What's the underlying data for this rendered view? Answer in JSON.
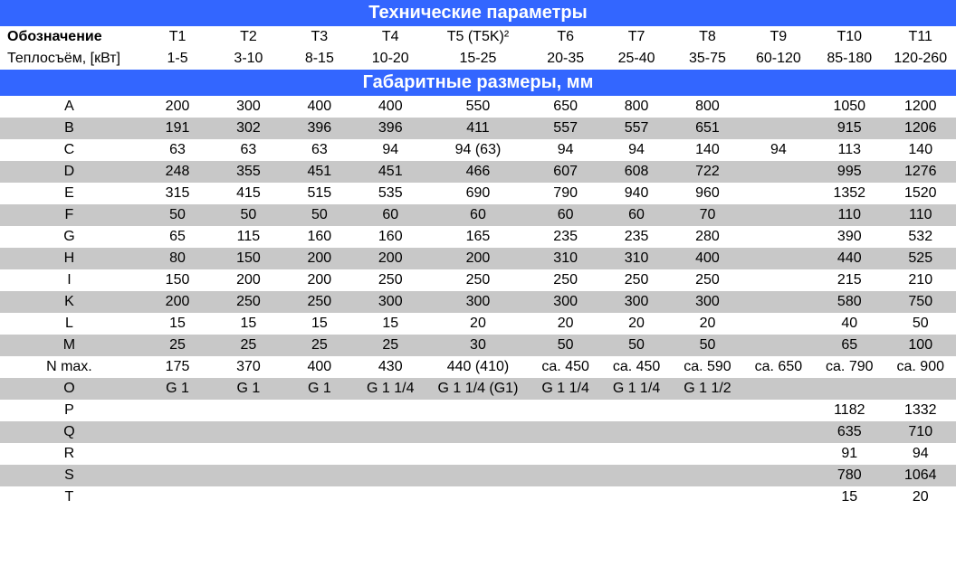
{
  "colors": {
    "header_bg": "#3366ff",
    "header_text": "#ffffff",
    "row_light": "#ffffff",
    "row_gray": "#c8c8c8",
    "text": "#000000"
  },
  "section1": {
    "title": "Технические параметры",
    "row1_label": "Обозначение",
    "row1_cols": [
      "T1",
      "T2",
      "T3",
      "T4",
      "T5 (T5K)²",
      "T6",
      "T7",
      "T8",
      "T9",
      "T10",
      "T11"
    ],
    "row2_label": "Теплосъём, [кВт]",
    "row2_cols": [
      "1-5",
      "3-10",
      "8-15",
      "10-20",
      "15-25",
      "20-35",
      "25-40",
      "35-75",
      "60-120",
      "85-180",
      "120-260"
    ]
  },
  "section2": {
    "title": "Габаритные размеры, мм",
    "rows": [
      {
        "label": "A",
        "gray": false,
        "vals": [
          "200",
          "300",
          "400",
          "400",
          "550",
          "650",
          "800",
          "800",
          "",
          "1050",
          "1200"
        ]
      },
      {
        "label": "B",
        "gray": true,
        "vals": [
          "191",
          "302",
          "396",
          "396",
          "411",
          "557",
          "557",
          "651",
          "",
          "915",
          "1206"
        ]
      },
      {
        "label": "C",
        "gray": false,
        "vals": [
          "63",
          "63",
          "63",
          "94",
          "94 (63)",
          "94",
          "94",
          "140",
          "94",
          "113",
          "140"
        ]
      },
      {
        "label": "D",
        "gray": true,
        "vals": [
          "248",
          "355",
          "451",
          "451",
          "466",
          "607",
          "608",
          "722",
          "",
          "995",
          "1276"
        ]
      },
      {
        "label": "E",
        "gray": false,
        "vals": [
          "315",
          "415",
          "515",
          "535",
          "690",
          "790",
          "940",
          "960",
          "",
          "1352",
          "1520"
        ]
      },
      {
        "label": "F",
        "gray": true,
        "vals": [
          "50",
          "50",
          "50",
          "60",
          "60",
          "60",
          "60",
          "70",
          "",
          "110",
          "110"
        ]
      },
      {
        "label": "G",
        "gray": false,
        "vals": [
          "65",
          "115",
          "160",
          "160",
          "165",
          "235",
          "235",
          "280",
          "",
          "390",
          "532"
        ]
      },
      {
        "label": "H",
        "gray": true,
        "vals": [
          "80",
          "150",
          "200",
          "200",
          "200",
          "310",
          "310",
          "400",
          "",
          "440",
          "525"
        ]
      },
      {
        "label": "I",
        "gray": false,
        "vals": [
          "150",
          "200",
          "200",
          "250",
          "250",
          "250",
          "250",
          "250",
          "",
          "215",
          "210"
        ]
      },
      {
        "label": "K",
        "gray": true,
        "vals": [
          "200",
          "250",
          "250",
          "300",
          "300",
          "300",
          "300",
          "300",
          "",
          "580",
          "750"
        ]
      },
      {
        "label": "L",
        "gray": false,
        "vals": [
          "15",
          "15",
          "15",
          "15",
          "20",
          "20",
          "20",
          "20",
          "",
          "40",
          "50"
        ]
      },
      {
        "label": "M",
        "gray": true,
        "vals": [
          "25",
          "25",
          "25",
          "25",
          "30",
          "50",
          "50",
          "50",
          "",
          "65",
          "100"
        ]
      },
      {
        "label": "N max.",
        "gray": false,
        "vals": [
          "175",
          "370",
          "400",
          "430",
          "440 (410)",
          "ca. 450",
          "ca. 450",
          "ca. 590",
          "ca. 650",
          "ca. 790",
          "ca. 900"
        ]
      },
      {
        "label": "O",
        "gray": true,
        "vals": [
          "G 1",
          "G 1",
          "G 1",
          "G 1 1/4",
          "G 1 1/4 (G1)",
          "G 1 1/4",
          "G 1 1/4",
          "G 1 1/2",
          "",
          "",
          ""
        ]
      },
      {
        "label": "P",
        "gray": false,
        "vals": [
          "",
          "",
          "",
          "",
          "",
          "",
          "",
          "",
          "",
          "1182",
          "1332"
        ]
      },
      {
        "label": "Q",
        "gray": true,
        "vals": [
          "",
          "",
          "",
          "",
          "",
          "",
          "",
          "",
          "",
          "635",
          "710"
        ]
      },
      {
        "label": "R",
        "gray": false,
        "vals": [
          "",
          "",
          "",
          "",
          "",
          "",
          "",
          "",
          "",
          "91",
          "94"
        ]
      },
      {
        "label": "S",
        "gray": true,
        "vals": [
          "",
          "",
          "",
          "",
          "",
          "",
          "",
          "",
          "",
          "780",
          "1064"
        ]
      },
      {
        "label": "T",
        "gray": false,
        "vals": [
          "",
          "",
          "",
          "",
          "",
          "",
          "",
          "",
          "",
          "15",
          "20"
        ]
      }
    ]
  }
}
